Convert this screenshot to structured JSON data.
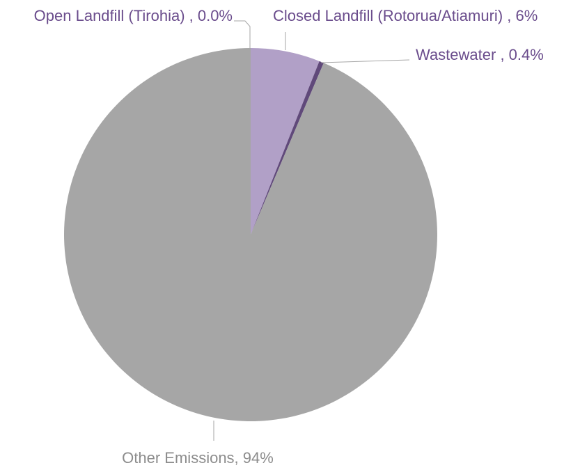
{
  "chart_data": {
    "type": "pie",
    "title": "",
    "start_angle_deg": 0,
    "direction": "clockwise",
    "slices": [
      {
        "name": "Open Landfill (Tirohia)",
        "value": 0.0,
        "label": "Open Landfill (Tirohia) , 0.0%",
        "color": "#7a5ea5",
        "label_color": "#6a4c8c"
      },
      {
        "name": "Closed Landfill (Rotorua/Atiamuri)",
        "value": 6,
        "label": "Closed Landfill (Rotorua/Atiamuri) , 6%",
        "color": "#b1a0c7",
        "label_color": "#6a4c8c"
      },
      {
        "name": "Wastewater",
        "value": 0.4,
        "label": "Wastewater , 0.4%",
        "color": "#60497a",
        "label_color": "#6a4c8c"
      },
      {
        "name": "Other Emissions",
        "value": 93.6,
        "label": "Other Emissions, 94%",
        "color": "#a6a6a6",
        "label_color": "#8c8c8c"
      }
    ],
    "leader_line_color": "#a6a6a6"
  }
}
